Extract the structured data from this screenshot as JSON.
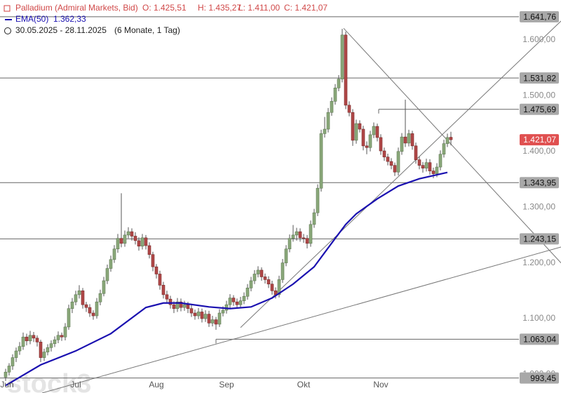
{
  "chart_data": {
    "type": "candlestick",
    "header": {
      "instrument": "Palladium (Admiral Markets, Bid)",
      "open": "O: 1.425,51",
      "high": "H: 1.435,27",
      "low": "L: 1.411,00",
      "close": "C: 1.421,07",
      "ema_name": "EMA(50)",
      "ema_value": "1.362,33",
      "range": "30.05.2025 - 28.11.2025",
      "period": "(6 Monate, 1 Tag)"
    },
    "watermark": "stock3",
    "xlim": [
      -1.6,
      158.4
    ],
    "ylim": [
      966.5,
      1671.8
    ],
    "xticks": [
      {
        "value": 0,
        "label": "Jun"
      },
      {
        "value": 20,
        "label": "Jul"
      },
      {
        "value": 43,
        "label": "Aug"
      },
      {
        "value": 63,
        "label": "Sep"
      },
      {
        "value": 85,
        "label": "Okt"
      },
      {
        "value": 107,
        "label": "Nov"
      }
    ],
    "yticks": [
      {
        "value": 1000,
        "label": "1.000,00"
      },
      {
        "value": 1100,
        "label": "1.100,00"
      },
      {
        "value": 1200,
        "label": "1.200,00"
      },
      {
        "value": 1300,
        "label": "1.300,00"
      },
      {
        "value": 1400,
        "label": "1.400,00"
      },
      {
        "value": 1500,
        "label": "1.500,00"
      },
      {
        "value": 1600,
        "label": "1.600,00"
      }
    ],
    "up_color": "#8aa87a",
    "down_color": "#b04848",
    "wick_color": "#555555",
    "candles": [
      [
        995,
        1010,
        988,
        1004
      ],
      [
        1004,
        1020,
        998,
        1015
      ],
      [
        1015,
        1036,
        1008,
        1030
      ],
      [
        1030,
        1048,
        1022,
        1042
      ],
      [
        1042,
        1058,
        1035,
        1050
      ],
      [
        1050,
        1075,
        1044,
        1067
      ],
      [
        1067,
        1073,
        1052,
        1060
      ],
      [
        1060,
        1078,
        1054,
        1070
      ],
      [
        1070,
        1076,
        1058,
        1065
      ],
      [
        1065,
        1070,
        1050,
        1058
      ],
      [
        1058,
        1062,
        1022,
        1030
      ],
      [
        1030,
        1046,
        1024,
        1040
      ],
      [
        1040,
        1054,
        1034,
        1048
      ],
      [
        1048,
        1061,
        1041,
        1055
      ],
      [
        1055,
        1068,
        1049,
        1062
      ],
      [
        1062,
        1077,
        1056,
        1070
      ],
      [
        1070,
        1075,
        1060,
        1067
      ],
      [
        1067,
        1092,
        1061,
        1085
      ],
      [
        1085,
        1125,
        1080,
        1118
      ],
      [
        1118,
        1137,
        1110,
        1130
      ],
      [
        1130,
        1150,
        1124,
        1143
      ],
      [
        1143,
        1160,
        1136,
        1150
      ],
      [
        1150,
        1155,
        1118,
        1125
      ],
      [
        1125,
        1130,
        1112,
        1120
      ],
      [
        1120,
        1126,
        1103,
        1110
      ],
      [
        1110,
        1115,
        1098,
        1105
      ],
      [
        1105,
        1137,
        1100,
        1130
      ],
      [
        1130,
        1152,
        1124,
        1145
      ],
      [
        1145,
        1175,
        1140,
        1168
      ],
      [
        1168,
        1197,
        1162,
        1190
      ],
      [
        1190,
        1213,
        1184,
        1206
      ],
      [
        1206,
        1232,
        1200,
        1225
      ],
      [
        1225,
        1252,
        1218,
        1244
      ],
      [
        1244,
        1325,
        1228,
        1235
      ],
      [
        1235,
        1258,
        1229,
        1250
      ],
      [
        1250,
        1264,
        1244,
        1256
      ],
      [
        1256,
        1262,
        1240,
        1248
      ],
      [
        1248,
        1255,
        1233,
        1240
      ],
      [
        1240,
        1246,
        1222,
        1230
      ],
      [
        1230,
        1252,
        1224,
        1245
      ],
      [
        1245,
        1250,
        1224,
        1231
      ],
      [
        1231,
        1237,
        1208,
        1215
      ],
      [
        1215,
        1220,
        1185,
        1193
      ],
      [
        1193,
        1198,
        1172,
        1180
      ],
      [
        1180,
        1186,
        1152,
        1160
      ],
      [
        1160,
        1166,
        1136,
        1143
      ],
      [
        1143,
        1150,
        1128,
        1135
      ],
      [
        1135,
        1141,
        1118,
        1125
      ],
      [
        1125,
        1131,
        1110,
        1118
      ],
      [
        1118,
        1137,
        1112,
        1130
      ],
      [
        1130,
        1136,
        1113,
        1120
      ],
      [
        1120,
        1132,
        1114,
        1125
      ],
      [
        1125,
        1130,
        1110,
        1118
      ],
      [
        1118,
        1124,
        1103,
        1110
      ],
      [
        1110,
        1116,
        1098,
        1105
      ],
      [
        1105,
        1119,
        1099,
        1112
      ],
      [
        1112,
        1118,
        1093,
        1100
      ],
      [
        1100,
        1115,
        1094,
        1108
      ],
      [
        1108,
        1114,
        1085,
        1092
      ],
      [
        1092,
        1105,
        1086,
        1098
      ],
      [
        1098,
        1103,
        1080,
        1090
      ],
      [
        1090,
        1117,
        1085,
        1110
      ],
      [
        1110,
        1122,
        1104,
        1115
      ],
      [
        1115,
        1132,
        1109,
        1125
      ],
      [
        1125,
        1144,
        1119,
        1137
      ],
      [
        1137,
        1142,
        1123,
        1130
      ],
      [
        1130,
        1136,
        1118,
        1125
      ],
      [
        1125,
        1139,
        1119,
        1132
      ],
      [
        1132,
        1147,
        1126,
        1140
      ],
      [
        1140,
        1162,
        1134,
        1155
      ],
      [
        1155,
        1175,
        1149,
        1168
      ],
      [
        1168,
        1187,
        1162,
        1180
      ],
      [
        1180,
        1194,
        1174,
        1187
      ],
      [
        1187,
        1192,
        1168,
        1175
      ],
      [
        1175,
        1181,
        1163,
        1170
      ],
      [
        1170,
        1176,
        1155,
        1162
      ],
      [
        1162,
        1168,
        1143,
        1150
      ],
      [
        1150,
        1156,
        1136,
        1143
      ],
      [
        1143,
        1177,
        1138,
        1170
      ],
      [
        1170,
        1207,
        1164,
        1200
      ],
      [
        1200,
        1232,
        1194,
        1225
      ],
      [
        1225,
        1251,
        1219,
        1244
      ],
      [
        1244,
        1268,
        1238,
        1250
      ],
      [
        1250,
        1263,
        1240,
        1256
      ],
      [
        1256,
        1262,
        1238,
        1245
      ],
      [
        1245,
        1252,
        1236,
        1244
      ],
      [
        1244,
        1250,
        1226,
        1235
      ],
      [
        1235,
        1276,
        1229,
        1269
      ],
      [
        1269,
        1297,
        1263,
        1290
      ],
      [
        1290,
        1341,
        1284,
        1334
      ],
      [
        1334,
        1439,
        1328,
        1432
      ],
      [
        1432,
        1462,
        1425,
        1440
      ],
      [
        1440,
        1478,
        1434,
        1470
      ],
      [
        1470,
        1497,
        1464,
        1490
      ],
      [
        1490,
        1521,
        1484,
        1514
      ],
      [
        1514,
        1537,
        1508,
        1530
      ],
      [
        1530,
        1620,
        1524,
        1609
      ],
      [
        1609,
        1615,
        1476,
        1483
      ],
      [
        1483,
        1490,
        1463,
        1470
      ],
      [
        1470,
        1476,
        1410,
        1420
      ],
      [
        1420,
        1457,
        1414,
        1450
      ],
      [
        1450,
        1456,
        1434,
        1440
      ],
      [
        1440,
        1446,
        1402,
        1410
      ],
      [
        1410,
        1418,
        1395,
        1407
      ],
      [
        1407,
        1437,
        1400,
        1430
      ],
      [
        1430,
        1452,
        1424,
        1445
      ],
      [
        1445,
        1450,
        1418,
        1425
      ],
      [
        1425,
        1431,
        1394,
        1401
      ],
      [
        1401,
        1407,
        1383,
        1390
      ],
      [
        1390,
        1396,
        1375,
        1382
      ],
      [
        1382,
        1388,
        1368,
        1375
      ],
      [
        1375,
        1380,
        1356,
        1363
      ],
      [
        1363,
        1407,
        1357,
        1400
      ],
      [
        1400,
        1433,
        1394,
        1426
      ],
      [
        1426,
        1493,
        1408,
        1415
      ],
      [
        1415,
        1439,
        1409,
        1432
      ],
      [
        1432,
        1437,
        1403,
        1410
      ],
      [
        1410,
        1416,
        1378,
        1385
      ],
      [
        1385,
        1391,
        1368,
        1375
      ],
      [
        1375,
        1381,
        1362,
        1370
      ],
      [
        1370,
        1387,
        1364,
        1380
      ],
      [
        1380,
        1386,
        1358,
        1365
      ],
      [
        1365,
        1371,
        1352,
        1360
      ],
      [
        1360,
        1379,
        1354,
        1372
      ],
      [
        1372,
        1402,
        1366,
        1395
      ],
      [
        1395,
        1421,
        1389,
        1414
      ],
      [
        1414,
        1432,
        1408,
        1425
      ],
      [
        1425.51,
        1435.27,
        1411,
        1421.07
      ]
    ],
    "ema": {
      "name": "EMA(50)",
      "color": "#1a10b0",
      "x": [
        0,
        10,
        20,
        30,
        40,
        45,
        50,
        58,
        64,
        70,
        76,
        82,
        88,
        94,
        97,
        100,
        106,
        112,
        118,
        126
      ],
      "values": [
        980,
        1017,
        1042,
        1073,
        1120,
        1128,
        1128,
        1121,
        1118,
        1121,
        1137,
        1162,
        1193,
        1244,
        1269,
        1288,
        1315,
        1338,
        1351,
        1362.33
      ]
    },
    "levels": [
      {
        "value": 1641.76,
        "label": "1.641,76",
        "start": -1.6
      },
      {
        "value": 1531.82,
        "label": "1.531,82",
        "start": -1.6
      },
      {
        "value": 1475.69,
        "label": "1.475,69",
        "start": 106.4
      },
      {
        "value": 1343.95,
        "label": "1.343,95",
        "start": -1.6
      },
      {
        "value": 1243.15,
        "label": "1.243,15",
        "start": -1.6
      },
      {
        "value": 1063.04,
        "label": "1.063,04",
        "start": 60
      },
      {
        "value": 993.45,
        "label": "993,45",
        "start": -1.6
      }
    ],
    "last_price": {
      "value": 1421.07,
      "label": "1.421,07",
      "color": "#e05050"
    },
    "trendlines": [
      {
        "x": [
          67,
          158.4
        ],
        "y": [
          1084,
          1634
        ]
      },
      {
        "x": [
          96.4,
          158.4
        ],
        "y": [
          1621,
          1200
        ]
      },
      {
        "x": [
          10.4,
          158.4
        ],
        "y": [
          966.5,
          1228.5
        ]
      }
    ]
  }
}
